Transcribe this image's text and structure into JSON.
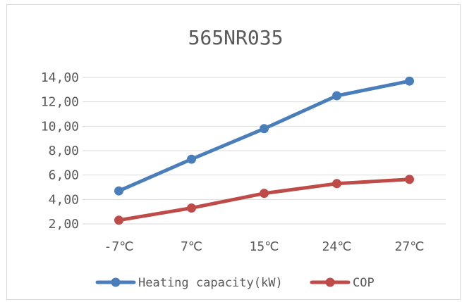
{
  "chart_data": {
    "type": "line",
    "title": "565NR035",
    "categories": [
      "-7℃",
      "7℃",
      "15℃",
      "24℃",
      "27℃"
    ],
    "series": [
      {
        "name": "Heating capacity(kW)",
        "values": [
          4.7,
          7.3,
          9.8,
          12.5,
          13.7
        ],
        "color": "#4a7ebb"
      },
      {
        "name": "COP",
        "values": [
          2.3,
          3.3,
          4.5,
          5.3,
          5.65
        ],
        "color": "#be4b48"
      }
    ],
    "ylim": [
      2,
      14
    ],
    "yticks": [
      2,
      4,
      6,
      8,
      10,
      12,
      14
    ],
    "ytick_labels": [
      "2,00",
      "4,00",
      "6,00",
      "8,00",
      "10,00",
      "12,00",
      "14,00"
    ],
    "xlabel": "",
    "ylabel": "",
    "grid": true,
    "legend_position": "bottom"
  }
}
